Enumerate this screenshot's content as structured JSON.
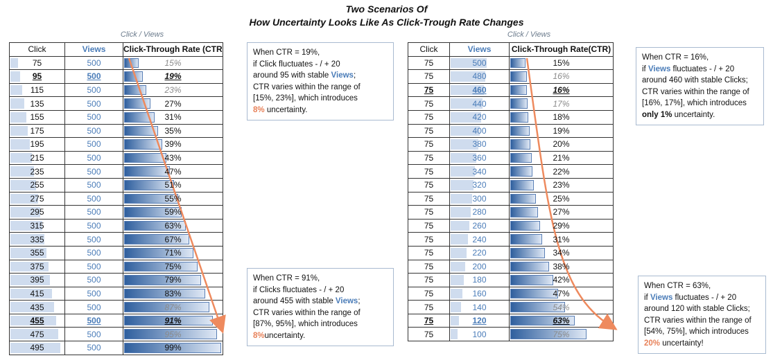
{
  "title_line1": "Two Scenarios Of",
  "title_line2": "How Uncertainty Looks Like As Click-Trough Rate Changes",
  "colors": {
    "accent_orange": "#e8825a",
    "views_blue": "#4a7cb8",
    "bar_light": "#cfdcee",
    "bar_dark": "#2f5f9e"
  },
  "chart_data": [
    {
      "type": "table",
      "caption": "Click / Views",
      "columns": [
        "Click",
        "Views",
        "Click-Through Rate (CTR)"
      ],
      "rows": [
        {
          "click": 75,
          "views": 500,
          "ctr": "15%",
          "ctr_value": 15,
          "style": "dim"
        },
        {
          "click": 95,
          "views": 500,
          "ctr": "19%",
          "ctr_value": 19,
          "style": "hl"
        },
        {
          "click": 115,
          "views": 500,
          "ctr": "23%",
          "ctr_value": 23,
          "style": "dim"
        },
        {
          "click": 135,
          "views": 500,
          "ctr": "27%",
          "ctr_value": 27,
          "style": ""
        },
        {
          "click": 155,
          "views": 500,
          "ctr": "31%",
          "ctr_value": 31,
          "style": ""
        },
        {
          "click": 175,
          "views": 500,
          "ctr": "35%",
          "ctr_value": 35,
          "style": ""
        },
        {
          "click": 195,
          "views": 500,
          "ctr": "39%",
          "ctr_value": 39,
          "style": ""
        },
        {
          "click": 215,
          "views": 500,
          "ctr": "43%",
          "ctr_value": 43,
          "style": ""
        },
        {
          "click": 235,
          "views": 500,
          "ctr": "47%",
          "ctr_value": 47,
          "style": ""
        },
        {
          "click": 255,
          "views": 500,
          "ctr": "51%",
          "ctr_value": 51,
          "style": ""
        },
        {
          "click": 275,
          "views": 500,
          "ctr": "55%",
          "ctr_value": 55,
          "style": ""
        },
        {
          "click": 295,
          "views": 500,
          "ctr": "59%",
          "ctr_value": 59,
          "style": ""
        },
        {
          "click": 315,
          "views": 500,
          "ctr": "63%",
          "ctr_value": 63,
          "style": ""
        },
        {
          "click": 335,
          "views": 500,
          "ctr": "67%",
          "ctr_value": 67,
          "style": ""
        },
        {
          "click": 355,
          "views": 500,
          "ctr": "71%",
          "ctr_value": 71,
          "style": ""
        },
        {
          "click": 375,
          "views": 500,
          "ctr": "75%",
          "ctr_value": 75,
          "style": ""
        },
        {
          "click": 395,
          "views": 500,
          "ctr": "79%",
          "ctr_value": 79,
          "style": ""
        },
        {
          "click": 415,
          "views": 500,
          "ctr": "83%",
          "ctr_value": 83,
          "style": ""
        },
        {
          "click": 435,
          "views": 500,
          "ctr": "87%",
          "ctr_value": 87,
          "style": "dim"
        },
        {
          "click": 455,
          "views": 500,
          "ctr": "91%",
          "ctr_value": 91,
          "style": "hl"
        },
        {
          "click": 475,
          "views": 500,
          "ctr": "95%",
          "ctr_value": 95,
          "style": "dim"
        },
        {
          "click": 495,
          "views": 500,
          "ctr": "99%",
          "ctr_value": 99,
          "style": ""
        }
      ]
    },
    {
      "type": "table",
      "caption": "Click / Views",
      "columns": [
        "Click",
        "Views",
        "Click-Through Rate(CTR)"
      ],
      "rows": [
        {
          "click": 75,
          "views": 500,
          "ctr": "15%",
          "ctr_value": 15,
          "style": ""
        },
        {
          "click": 75,
          "views": 480,
          "ctr": "16%",
          "ctr_value": 16,
          "style": "dim"
        },
        {
          "click": 75,
          "views": 460,
          "ctr": "16%",
          "ctr_value": 16,
          "style": "hl"
        },
        {
          "click": 75,
          "views": 440,
          "ctr": "17%",
          "ctr_value": 17,
          "style": "dim"
        },
        {
          "click": 75,
          "views": 420,
          "ctr": "18%",
          "ctr_value": 18,
          "style": ""
        },
        {
          "click": 75,
          "views": 400,
          "ctr": "19%",
          "ctr_value": 19,
          "style": ""
        },
        {
          "click": 75,
          "views": 380,
          "ctr": "20%",
          "ctr_value": 20,
          "style": ""
        },
        {
          "click": 75,
          "views": 360,
          "ctr": "21%",
          "ctr_value": 21,
          "style": ""
        },
        {
          "click": 75,
          "views": 340,
          "ctr": "22%",
          "ctr_value": 22,
          "style": ""
        },
        {
          "click": 75,
          "views": 320,
          "ctr": "23%",
          "ctr_value": 23,
          "style": ""
        },
        {
          "click": 75,
          "views": 300,
          "ctr": "25%",
          "ctr_value": 25,
          "style": ""
        },
        {
          "click": 75,
          "views": 280,
          "ctr": "27%",
          "ctr_value": 27,
          "style": ""
        },
        {
          "click": 75,
          "views": 260,
          "ctr": "29%",
          "ctr_value": 29,
          "style": ""
        },
        {
          "click": 75,
          "views": 240,
          "ctr": "31%",
          "ctr_value": 31,
          "style": ""
        },
        {
          "click": 75,
          "views": 220,
          "ctr": "34%",
          "ctr_value": 34,
          "style": ""
        },
        {
          "click": 75,
          "views": 200,
          "ctr": "38%",
          "ctr_value": 38,
          "style": ""
        },
        {
          "click": 75,
          "views": 180,
          "ctr": "42%",
          "ctr_value": 42,
          "style": ""
        },
        {
          "click": 75,
          "views": 160,
          "ctr": "47%",
          "ctr_value": 47,
          "style": ""
        },
        {
          "click": 75,
          "views": 140,
          "ctr": "54%",
          "ctr_value": 54,
          "style": "dim"
        },
        {
          "click": 75,
          "views": 120,
          "ctr": "63%",
          "ctr_value": 63,
          "style": "hl"
        },
        {
          "click": 75,
          "views": 100,
          "ctr": "75%",
          "ctr_value": 75,
          "style": "dim"
        }
      ]
    }
  ],
  "notes": {
    "left_top": {
      "l1": "When CTR = 19%,",
      "l2": "if Click fluctuates - / + 20",
      "l3a": "around 95 with stable ",
      "l3b": "Views",
      "l3c": ";",
      "l4": "CTR varies within the range of",
      "l5": "[15%, 23%], which introduces",
      "l6a": "8%",
      "l6b": " uncertainty."
    },
    "left_bottom": {
      "l1": "When CTR = 91%,",
      "l2": "if Clicks fluctuates - / + 20",
      "l3a": "around 455 with stable ",
      "l3b": "Views",
      "l3c": ";",
      "l4": "CTR varies within the range of",
      "l5": "[87%, 95%], which introduces",
      "l6a": "8%",
      "l6b": "uncertainty."
    },
    "right_top": {
      "l1": "When CTR = 16%,",
      "l2a": "if ",
      "l2b": "Views",
      "l2c": " fluctuates - / + 20",
      "l3": "around 460 with stable Clicks;",
      "l4": "CTR varies within the range of",
      "l5": "[16%, 17%],  which introduces",
      "l6a": "only 1%",
      "l6b": " uncertainty."
    },
    "right_bottom": {
      "l1": "When CTR = 63%,",
      "l2a": "if ",
      "l2b": "Views",
      "l2c": " fluctuates - / + 20",
      "l3": "around 120 with stable Clicks;",
      "l4": "CTR varies within the range of",
      "l5": "[54%, 75%], which introduces",
      "l6a": "20%",
      "l6b": " uncertainty!"
    }
  }
}
